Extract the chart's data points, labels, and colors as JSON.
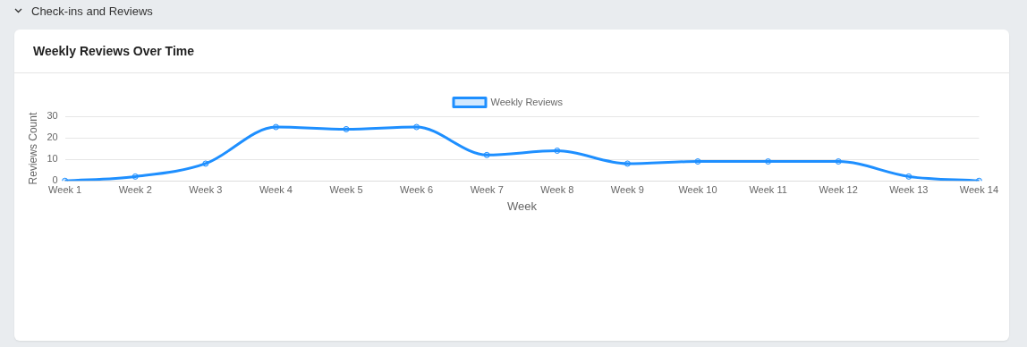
{
  "chart_data": {
    "type": "line",
    "title": "Weekly Reviews Over Time",
    "annotations": [
      "Check-ins and Reviews"
    ],
    "xlabel": "Week",
    "ylabel": "Reviews Count",
    "categories": [
      "Week 1",
      "Week 2",
      "Week 3",
      "Week 4",
      "Week 5",
      "Week 6",
      "Week 7",
      "Week 8",
      "Week 9",
      "Week 10",
      "Week 11",
      "Week 12",
      "Week 13",
      "Week 14"
    ],
    "series": [
      {
        "name": "Weekly Reviews",
        "color": "#1e8fff",
        "values": [
          0,
          2,
          8,
          25,
          24,
          25,
          12,
          14,
          8,
          9,
          9,
          9,
          2,
          0
        ]
      }
    ],
    "ylim": [
      0,
      30
    ],
    "yticks": [
      0,
      10,
      20,
      30
    ],
    "grid": "y",
    "legend": "top",
    "marker": "circle",
    "line_style": "solid"
  }
}
